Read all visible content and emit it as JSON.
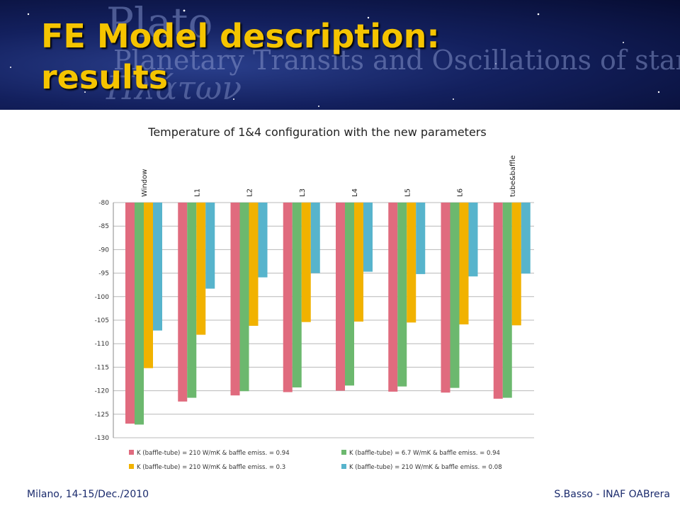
{
  "slide": {
    "title_line1": "FE Model description:",
    "title_line2": "results",
    "banner_logo_word": "Plato",
    "banner_tagline": "Planetary Transits and Oscillations of stars",
    "banner_greek": "Πλάτων"
  },
  "footer": {
    "left": "Milano, 14-15/Dec./2010",
    "right": "S.Basso - INAF OABrera"
  },
  "chart_data": {
    "type": "bar",
    "title": "Temperature of 1&4 configuration with the new parameters",
    "categories": [
      "Window",
      "L1",
      "L2",
      "L3",
      "L4",
      "L5",
      "L6",
      "tube&baffle"
    ],
    "ylim": [
      -130,
      -80
    ],
    "yticks": [
      -80,
      -85,
      -90,
      -95,
      -100,
      -105,
      -110,
      -115,
      -120,
      -125,
      -130
    ],
    "grid": true,
    "legend_position": "bottom",
    "series": [
      {
        "name": "K (baffle-tube) = 210 W/mK & baffle emiss. = 0.94",
        "color": "#e06b7e",
        "values": [
          -127.0,
          -122.3,
          -121.0,
          -120.3,
          -120.0,
          -120.2,
          -120.4,
          -121.7
        ]
      },
      {
        "name": "K (baffle-tube) = 6.7 W/mK & baffle emiss. = 0.94",
        "color": "#6cb86e",
        "values": [
          -127.2,
          -121.5,
          -120.1,
          -119.3,
          -118.9,
          -119.1,
          -119.4,
          -121.5
        ]
      },
      {
        "name": "K (baffle-tube) = 210 W/mK & baffle emiss. = 0.3",
        "color": "#f1b200",
        "values": [
          -115.2,
          -108.1,
          -106.2,
          -105.4,
          -105.3,
          -105.5,
          -105.9,
          -106.1
        ]
      },
      {
        "name": "K (baffle-tube) = 210 W/mK & baffle emiss. = 0.08",
        "color": "#57b4cc",
        "values": [
          -107.2,
          -98.3,
          -95.9,
          -95.0,
          -94.7,
          -95.2,
          -95.7,
          -95.1
        ]
      }
    ]
  }
}
